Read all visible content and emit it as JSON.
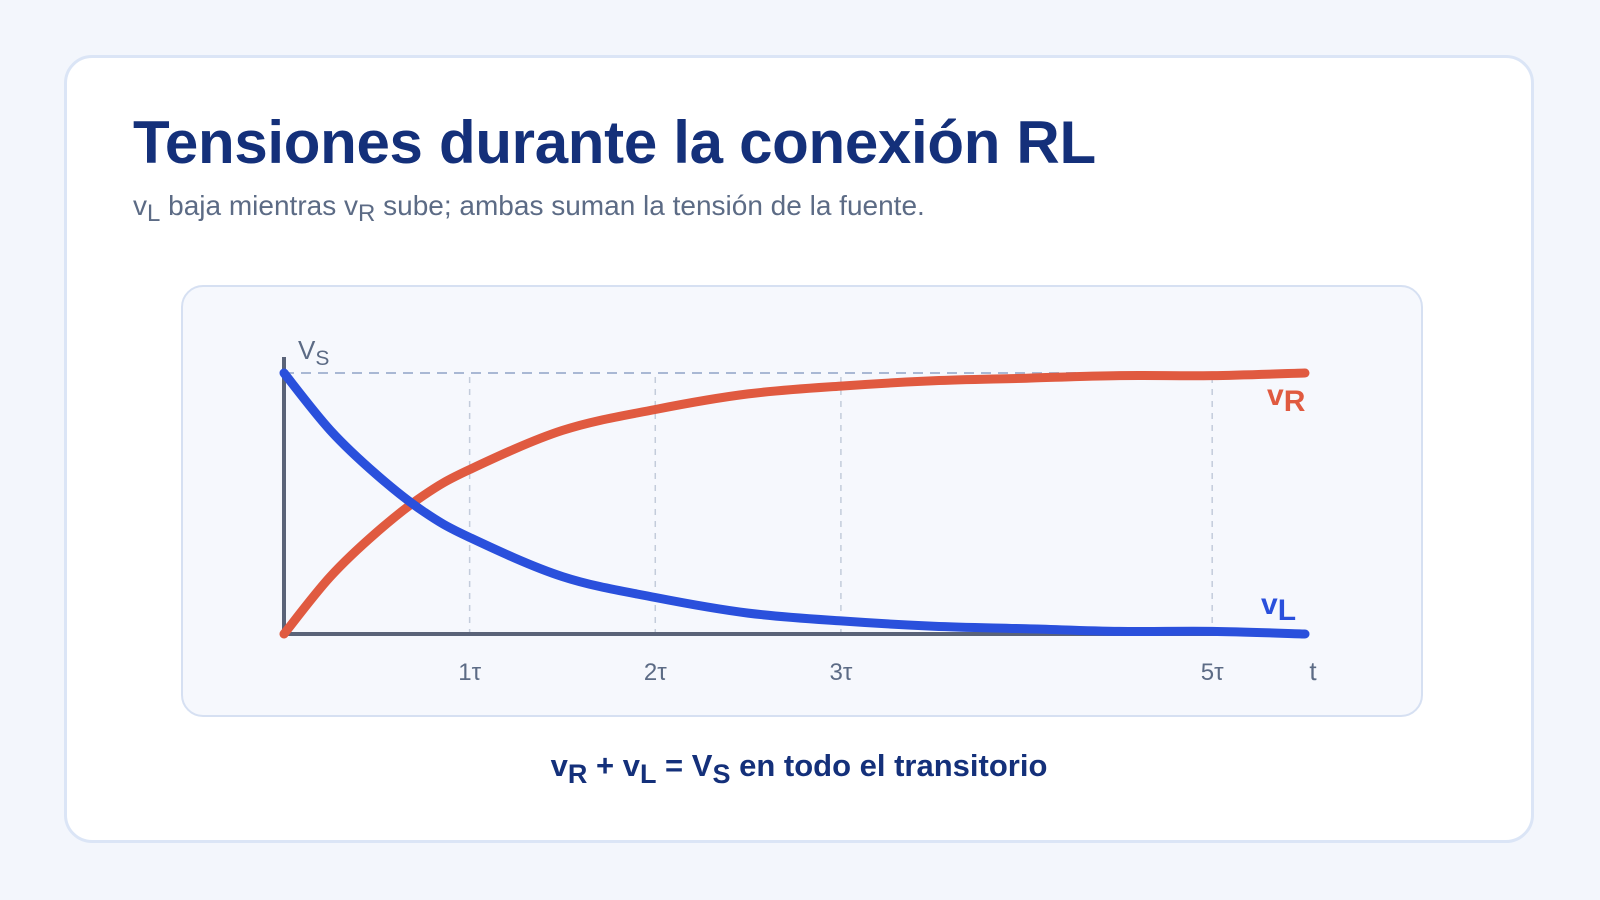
{
  "header": {
    "title": "Tensiones durante la conexión RL",
    "subtitle": {
      "a_main": "v",
      "a_sub": "L",
      "b": " baja mientras ",
      "c_main": "v",
      "c_sub": "R",
      "d": " sube; ambas suman la tensión de la fuente."
    }
  },
  "equation": {
    "p1_main": "v",
    "p1_sub": "R",
    "op1": " + ",
    "p2_main": "v",
    "p2_sub": "L",
    "op2": " = ",
    "p3_main": "V",
    "p3_sub": "S",
    "tail": " en todo el transitorio"
  },
  "chart_data": {
    "type": "line",
    "x_unit": "τ",
    "xlim": [
      0,
      5.5
    ],
    "ylim": [
      0,
      1
    ],
    "x_ticks": [
      {
        "value": 1,
        "label": "1τ"
      },
      {
        "value": 2,
        "label": "2τ"
      },
      {
        "value": 3,
        "label": "3τ"
      },
      {
        "value": 5,
        "label": "5τ"
      }
    ],
    "xlabel": "t",
    "y_reference": {
      "value": 1,
      "label_main": "V",
      "label_sub": "S"
    },
    "grid": "dashed vertical at ticks",
    "series": [
      {
        "name": "vR",
        "label_main": "v",
        "label_sub": "R",
        "color": "#e05a40",
        "x": [
          0,
          0.25,
          0.5,
          0.75,
          1,
          1.5,
          2,
          2.5,
          3,
          3.5,
          4,
          4.5,
          5,
          5.5
        ],
        "y": [
          0,
          0.22,
          0.39,
          0.53,
          0.63,
          0.78,
          0.86,
          0.92,
          0.95,
          0.97,
          0.98,
          0.99,
          0.99,
          1.0
        ]
      },
      {
        "name": "vL",
        "label_main": "v",
        "label_sub": "L",
        "color": "#2a50dc",
        "x": [
          0,
          0.25,
          0.5,
          0.75,
          1,
          1.5,
          2,
          2.5,
          3,
          3.5,
          4,
          4.5,
          5,
          5.5
        ],
        "y": [
          1,
          0.78,
          0.61,
          0.47,
          0.37,
          0.22,
          0.14,
          0.08,
          0.05,
          0.03,
          0.02,
          0.01,
          0.01,
          0.0
        ]
      }
    ]
  }
}
